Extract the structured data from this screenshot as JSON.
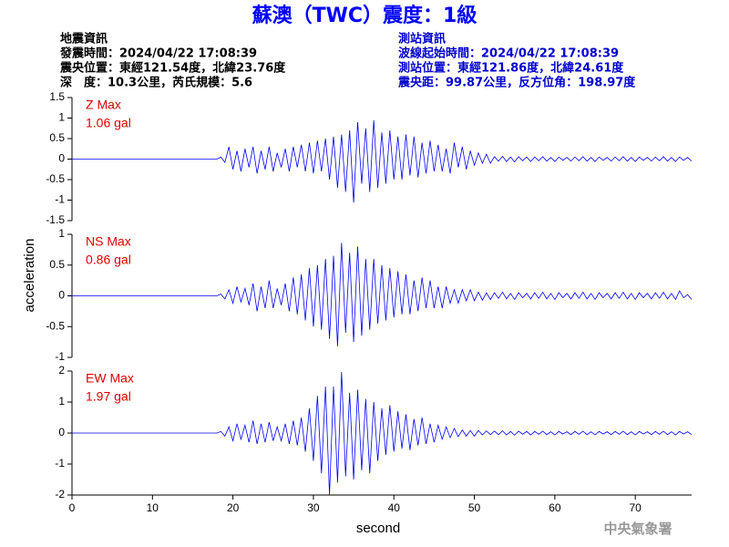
{
  "header": {
    "title": "蘇澳（TWC）震度：1級",
    "left": [
      "地震資訊",
      "發震時間：2024/04/22 17:08:39",
      "震央位置：東經121.54度，北緯23.76度",
      "深　度：10.3公里，芮氏規模：5.6"
    ],
    "right": [
      "測站資訊",
      "波線起始時間：2024/04/22 17:08:39",
      "測站位置：東經121.86度，北緯24.61度",
      "震央距：99.87公里，反方位角：198.97度"
    ]
  },
  "footer": "中央氣象署",
  "chart_data": {
    "type": "line",
    "xlabel": "second",
    "ylabel": "acceleration",
    "xlim": [
      0,
      77
    ],
    "xticks": [
      0,
      10,
      20,
      30,
      40,
      50,
      60,
      70
    ],
    "x": [
      0,
      18,
      18.5,
      19,
      19.5,
      20,
      20.5,
      21,
      21.5,
      22,
      22.5,
      23,
      23.5,
      24,
      24.5,
      25,
      25.5,
      26,
      26.5,
      27,
      27.5,
      28,
      28.5,
      29,
      29.5,
      30,
      30.5,
      31,
      31.5,
      32,
      32.5,
      33,
      33.5,
      34,
      34.5,
      35,
      35.5,
      36,
      36.5,
      37,
      37.5,
      38,
      38.5,
      39,
      39.5,
      40,
      40.5,
      41,
      41.5,
      42,
      42.5,
      43,
      43.5,
      44,
      44.5,
      45,
      45.5,
      46,
      46.5,
      47,
      47.5,
      48,
      48.5,
      49,
      49.5,
      50,
      50.5,
      51,
      51.5,
      52,
      52.5,
      53,
      53.5,
      54,
      54.5,
      55,
      55.5,
      56,
      56.5,
      57,
      57.5,
      58,
      58.5,
      59,
      59.5,
      60,
      60.5,
      61,
      61.5,
      62,
      62.5,
      63,
      63.5,
      64,
      64.5,
      65,
      65.5,
      66,
      66.5,
      67,
      67.5,
      68,
      68.5,
      69,
      69.5,
      70,
      70.5,
      71,
      71.5,
      72,
      72.5,
      73,
      73.5,
      74,
      74.5,
      75,
      75.5,
      76,
      76.5,
      77
    ],
    "series": [
      {
        "name": "Z Max",
        "annotation": "1.06 gal",
        "color": "#0000ff",
        "ylim": [
          -1.5,
          1.5
        ],
        "yticks": [
          -1.5,
          -1,
          -0.5,
          0,
          0.5,
          1,
          1.5
        ],
        "values": [
          0,
          0,
          0.05,
          -0.08,
          0.3,
          -0.25,
          0.2,
          -0.3,
          0.25,
          -0.2,
          0.3,
          -0.35,
          0.2,
          -0.25,
          0.3,
          -0.3,
          0.15,
          -0.2,
          0.25,
          -0.3,
          0.3,
          -0.2,
          0.35,
          -0.3,
          0.4,
          -0.35,
          0.45,
          -0.3,
          0.5,
          -0.5,
          0.55,
          -0.7,
          0.6,
          -0.8,
          0.7,
          -1.06,
          0.9,
          -0.6,
          0.75,
          -0.8,
          0.95,
          -0.7,
          0.65,
          -0.6,
          0.7,
          -0.5,
          0.55,
          -0.5,
          0.6,
          -0.4,
          0.55,
          -0.45,
          0.4,
          -0.35,
          0.45,
          -0.3,
          0.35,
          -0.3,
          0.25,
          -0.35,
          0.4,
          -0.2,
          0.3,
          -0.25,
          0.2,
          -0.15,
          0.15,
          -0.1,
          0.12,
          -0.1,
          0.06,
          -0.05,
          0.07,
          -0.06,
          0.05,
          -0.07,
          0.06,
          -0.04,
          0.05,
          -0.06,
          0.05,
          -0.04,
          0.06,
          -0.05,
          0.04,
          -0.06,
          0.05,
          -0.03,
          0.04,
          -0.05,
          0.05,
          -0.04,
          0.06,
          -0.05,
          0.04,
          -0.06,
          0.05,
          -0.03,
          0.04,
          -0.05,
          0.05,
          -0.04,
          0.06,
          -0.05,
          0.04,
          -0.06,
          0.05,
          -0.03,
          0.04,
          -0.05,
          0.05,
          -0.04,
          0.06,
          -0.05,
          0.04,
          -0.06,
          0.05,
          -0.03,
          0.04,
          -0.05
        ]
      },
      {
        "name": "NS Max",
        "annotation": "0.86 gal",
        "color": "#0000ff",
        "ylim": [
          -1,
          1
        ],
        "yticks": [
          -1,
          -0.5,
          0,
          0.5,
          1
        ],
        "values": [
          0,
          0,
          0.03,
          -0.05,
          0.1,
          -0.12,
          0.15,
          -0.1,
          0.12,
          -0.15,
          0.2,
          -0.25,
          0.15,
          -0.2,
          0.25,
          -0.2,
          0.12,
          -0.15,
          0.2,
          -0.25,
          0.3,
          -0.3,
          0.35,
          -0.4,
          0.45,
          -0.5,
          0.5,
          -0.55,
          0.6,
          -0.7,
          0.65,
          -0.82,
          0.86,
          -0.6,
          0.7,
          -0.75,
          0.8,
          -0.65,
          0.6,
          -0.55,
          0.6,
          -0.45,
          0.5,
          -0.4,
          0.45,
          -0.35,
          0.4,
          -0.3,
          0.35,
          -0.3,
          0.25,
          -0.25,
          0.3,
          -0.2,
          0.25,
          -0.2,
          0.15,
          -0.2,
          0.15,
          -0.12,
          0.1,
          -0.12,
          0.1,
          -0.08,
          0.1,
          -0.08,
          0.06,
          -0.07,
          0.05,
          -0.06,
          0.05,
          -0.04,
          0.06,
          -0.05,
          0.04,
          -0.06,
          0.05,
          -0.03,
          0.04,
          -0.05,
          0.05,
          -0.04,
          0.06,
          -0.05,
          0.04,
          -0.06,
          0.05,
          -0.03,
          0.04,
          -0.05,
          0.05,
          -0.04,
          0.06,
          -0.05,
          0.04,
          -0.06,
          0.05,
          -0.03,
          0.04,
          -0.05,
          0.05,
          -0.04,
          0.06,
          -0.05,
          0.04,
          -0.06,
          0.05,
          -0.03,
          0.04,
          -0.05,
          0.05,
          -0.04,
          0.06,
          -0.05,
          0.04,
          -0.06,
          0.08,
          -0.03,
          0.02,
          -0.06
        ]
      },
      {
        "name": "EW Max",
        "annotation": "1.97 gal",
        "color": "#0000ff",
        "ylim": [
          -2,
          2
        ],
        "yticks": [
          -2,
          -1,
          0,
          1,
          2
        ],
        "values": [
          0,
          0,
          0.05,
          -0.1,
          0.2,
          -0.25,
          0.3,
          -0.2,
          0.25,
          -0.3,
          0.4,
          -0.35,
          0.3,
          -0.3,
          0.35,
          -0.25,
          0.2,
          -0.25,
          0.3,
          -0.35,
          0.4,
          -0.4,
          0.5,
          -0.6,
          0.8,
          -0.9,
          1.2,
          -1.3,
          1.5,
          -2,
          1.5,
          -1.6,
          1.97,
          -1.4,
          1.3,
          -1.5,
          1.4,
          -1.2,
          1.1,
          -1.3,
          1.0,
          -0.9,
          0.8,
          -0.7,
          0.9,
          -0.6,
          0.7,
          -0.5,
          0.6,
          -0.55,
          0.45,
          -0.4,
          0.5,
          -0.35,
          0.3,
          -0.3,
          0.25,
          -0.2,
          0.2,
          -0.15,
          0.15,
          -0.12,
          0.1,
          -0.1,
          0.08,
          -0.1,
          0.08,
          -0.06,
          0.07,
          -0.05,
          0.06,
          -0.05,
          0.07,
          -0.06,
          0.05,
          -0.07,
          0.06,
          -0.04,
          0.05,
          -0.06,
          0.05,
          -0.04,
          0.06,
          -0.05,
          0.04,
          -0.06,
          0.05,
          -0.03,
          0.04,
          -0.05,
          0.05,
          -0.04,
          0.06,
          -0.05,
          0.04,
          -0.06,
          0.05,
          -0.03,
          0.04,
          -0.05,
          0.05,
          -0.04,
          0.06,
          -0.05,
          0.04,
          -0.06,
          0.05,
          -0.03,
          0.04,
          -0.05,
          0.05,
          -0.04,
          0.06,
          -0.05,
          0.04,
          -0.06,
          0.05,
          -0.03,
          0.04,
          -0.05
        ]
      }
    ]
  }
}
